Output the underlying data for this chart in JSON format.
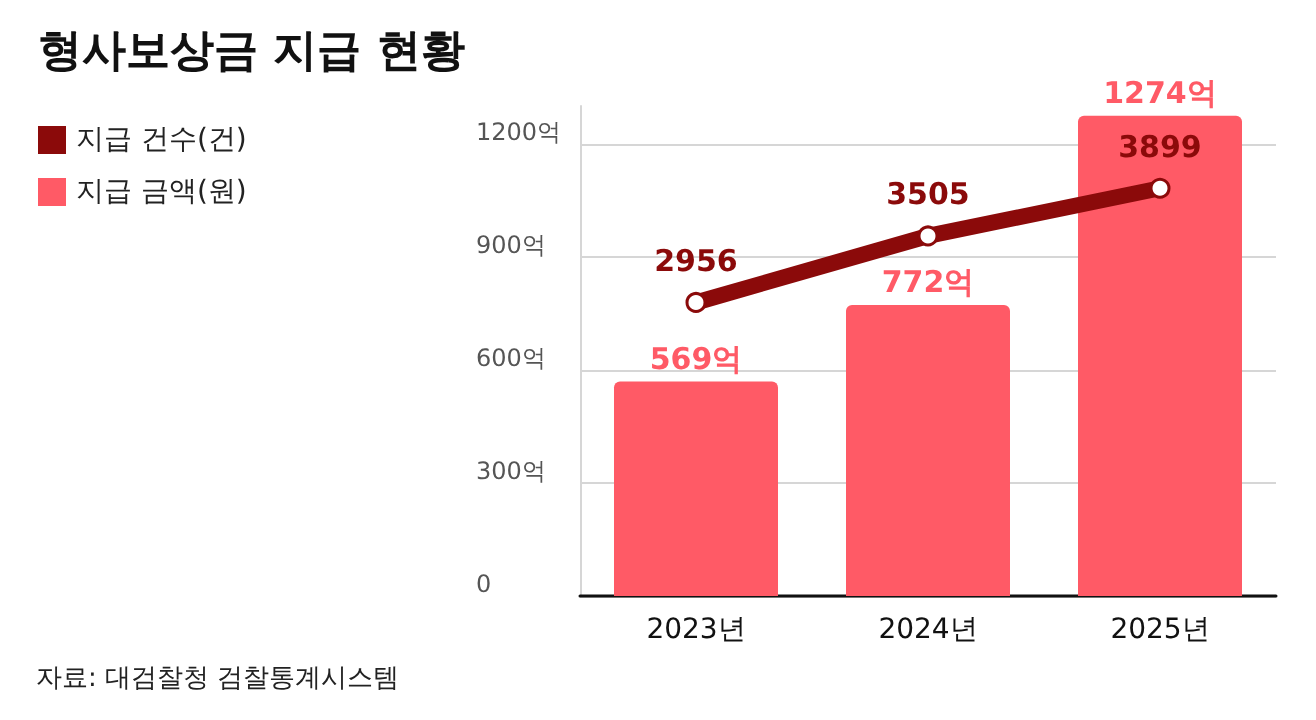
{
  "chart_data": {
    "type": "bar",
    "title": "형사보상금 지급 현황",
    "categories": [
      "2023년",
      "2024년",
      "2025년"
    ],
    "series": [
      {
        "name": "지급 건수(건)",
        "type": "line",
        "axis": "y2",
        "color": "#8b0a0a",
        "values": [
          2956,
          3505,
          3899
        ],
        "value_labels": [
          "2956",
          "3505",
          "3899"
        ]
      },
      {
        "name": "지급 금액(원)",
        "color": "#ff5a66",
        "values": [
          569,
          772,
          1274
        ],
        "value_labels": [
          "569억",
          "772억",
          "1274억"
        ]
      }
    ],
    "ylim": [
      0,
      1300
    ],
    "yticks": [
      {
        "value": 0,
        "label": "0"
      },
      {
        "value": 300,
        "label": "300억"
      },
      {
        "value": 600,
        "label": "600억"
      },
      {
        "value": 900,
        "label": "900억"
      },
      {
        "value": 1200,
        "label": "1200억"
      }
    ],
    "grid": "y",
    "legend": "top left",
    "marker": "circle",
    "annotations": [
      "자료: 대검찰청 검찰통계시스템"
    ]
  }
}
